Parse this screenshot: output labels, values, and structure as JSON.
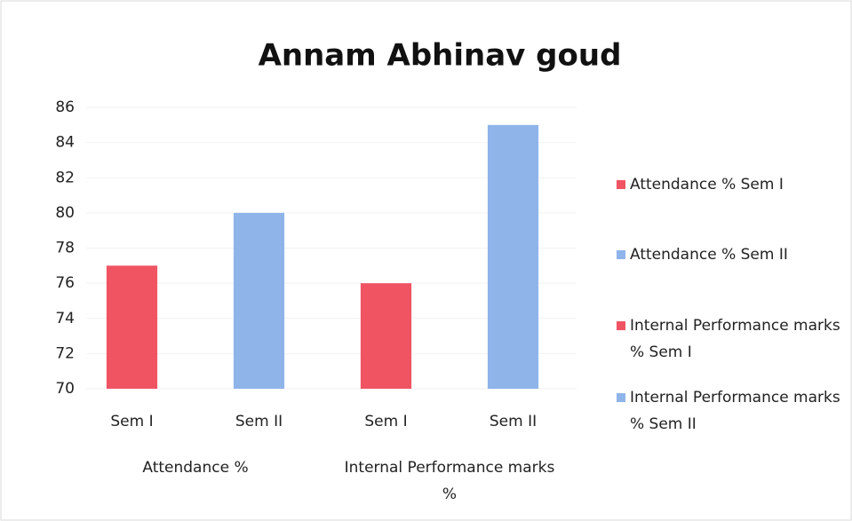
{
  "chart_data": {
    "type": "bar",
    "title": "Annam Abhinav goud",
    "categories": [
      "Sem I",
      "Sem II",
      "Sem I",
      "Sem II"
    ],
    "group_labels": [
      "Attendance %",
      "Internal Performance marks %"
    ],
    "series": [
      {
        "name": "Attendance % Sem I",
        "color": "#f05462",
        "values": [
          77,
          null,
          null,
          null
        ]
      },
      {
        "name": "Attendance % Sem II",
        "color": "#8fb4ea",
        "values": [
          null,
          80,
          null,
          null
        ]
      },
      {
        "name": "Internal Performance marks % Sem I",
        "color": "#f05462",
        "values": [
          null,
          null,
          76,
          null
        ]
      },
      {
        "name": "Internal Performance marks % Sem II",
        "color": "#8fb4ea",
        "values": [
          null,
          null,
          null,
          85
        ]
      }
    ],
    "ylim": [
      70,
      86
    ],
    "yticks": [
      70,
      72,
      74,
      76,
      78,
      80,
      82,
      84,
      86
    ],
    "grid": true,
    "legend": "right"
  }
}
